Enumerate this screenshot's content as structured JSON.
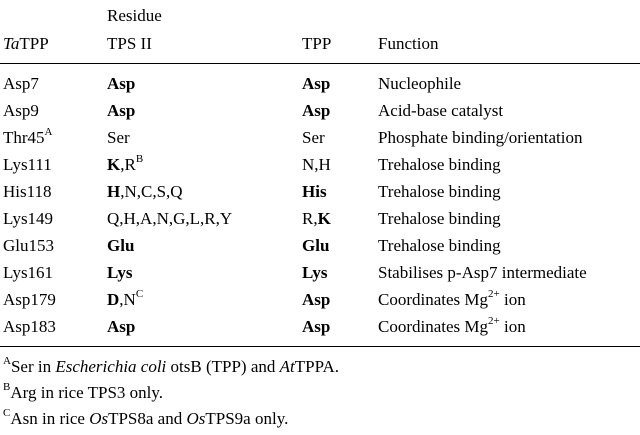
{
  "header": {
    "col1_italic": "Ta",
    "col1_rest": "TPP",
    "col2_top": "Residue",
    "col2_bottom": "TPS II",
    "col3": "TPP",
    "col4": "Function"
  },
  "rows": [
    {
      "residue": "Asp7",
      "residue_sup": "",
      "tps2": [
        {
          "t": "Asp",
          "b": true
        }
      ],
      "tps2_sup": "",
      "tpp": [
        {
          "t": "Asp",
          "b": true
        }
      ],
      "fn": "Nucleophile",
      "fn_sup": "",
      "fn_tail": ""
    },
    {
      "residue": "Asp9",
      "residue_sup": "",
      "tps2": [
        {
          "t": "Asp",
          "b": true
        }
      ],
      "tps2_sup": "",
      "tpp": [
        {
          "t": "Asp",
          "b": true
        }
      ],
      "fn": "Acid-base catalyst",
      "fn_sup": "",
      "fn_tail": ""
    },
    {
      "residue": "Thr45",
      "residue_sup": "A",
      "tps2": [
        {
          "t": "Ser",
          "b": false
        }
      ],
      "tps2_sup": "",
      "tpp": [
        {
          "t": "Ser",
          "b": false
        }
      ],
      "fn": "Phosphate binding/orientation",
      "fn_sup": "",
      "fn_tail": ""
    },
    {
      "residue": "Lys111",
      "residue_sup": "",
      "tps2": [
        {
          "t": "K",
          "b": true
        },
        {
          "t": ",R",
          "b": false
        }
      ],
      "tps2_sup": "B",
      "tpp": [
        {
          "t": "N,H",
          "b": false
        }
      ],
      "fn": "Trehalose binding",
      "fn_sup": "",
      "fn_tail": ""
    },
    {
      "residue": "His118",
      "residue_sup": "",
      "tps2": [
        {
          "t": "H",
          "b": true
        },
        {
          "t": ",N,C,S,Q",
          "b": false
        }
      ],
      "tps2_sup": "",
      "tpp": [
        {
          "t": "His",
          "b": true
        }
      ],
      "fn": "Trehalose binding",
      "fn_sup": "",
      "fn_tail": ""
    },
    {
      "residue": "Lys149",
      "residue_sup": "",
      "tps2": [
        {
          "t": "Q,H,A,N,G,L,R,Y",
          "b": false
        }
      ],
      "tps2_sup": "",
      "tpp": [
        {
          "t": "R,",
          "b": false
        },
        {
          "t": "K",
          "b": true
        }
      ],
      "fn": "Trehalose binding",
      "fn_sup": "",
      "fn_tail": ""
    },
    {
      "residue": "Glu153",
      "residue_sup": "",
      "tps2": [
        {
          "t": "Glu",
          "b": true
        }
      ],
      "tps2_sup": "",
      "tpp": [
        {
          "t": "Glu",
          "b": true
        }
      ],
      "fn": "Trehalose binding",
      "fn_sup": "",
      "fn_tail": ""
    },
    {
      "residue": "Lys161",
      "residue_sup": "",
      "tps2": [
        {
          "t": "Lys",
          "b": true
        }
      ],
      "tps2_sup": "",
      "tpp": [
        {
          "t": "Lys",
          "b": true
        }
      ],
      "fn": "Stabilises p-Asp7 intermediate",
      "fn_sup": "",
      "fn_tail": ""
    },
    {
      "residue": "Asp179",
      "residue_sup": "",
      "tps2": [
        {
          "t": "D",
          "b": true
        },
        {
          "t": ",N",
          "b": false
        }
      ],
      "tps2_sup": "C",
      "tpp": [
        {
          "t": "Asp",
          "b": true
        }
      ],
      "fn": "Coordinates Mg",
      "fn_sup": "2+",
      "fn_tail": " ion"
    },
    {
      "residue": "Asp183",
      "residue_sup": "",
      "tps2": [
        {
          "t": "Asp",
          "b": true
        }
      ],
      "tps2_sup": "",
      "tpp": [
        {
          "t": "Asp",
          "b": true
        }
      ],
      "fn": "Coordinates Mg",
      "fn_sup": "2+",
      "fn_tail": " ion"
    }
  ],
  "footnotes": [
    {
      "mark": "A",
      "parts": [
        {
          "t": "Ser in ",
          "i": false
        },
        {
          "t": "Escherichia coli",
          "i": true
        },
        {
          "t": " otsB (TPP) and ",
          "i": false
        },
        {
          "t": "At",
          "i": true
        },
        {
          "t": "TPPA.",
          "i": false
        }
      ]
    },
    {
      "mark": "B",
      "parts": [
        {
          "t": "Arg in rice TPS3 only.",
          "i": false
        }
      ]
    },
    {
      "mark": "C",
      "parts": [
        {
          "t": "Asn in rice ",
          "i": false
        },
        {
          "t": "Os",
          "i": true
        },
        {
          "t": "TPS8a and ",
          "i": false
        },
        {
          "t": "Os",
          "i": true
        },
        {
          "t": "TPS9a only.",
          "i": false
        }
      ]
    }
  ]
}
